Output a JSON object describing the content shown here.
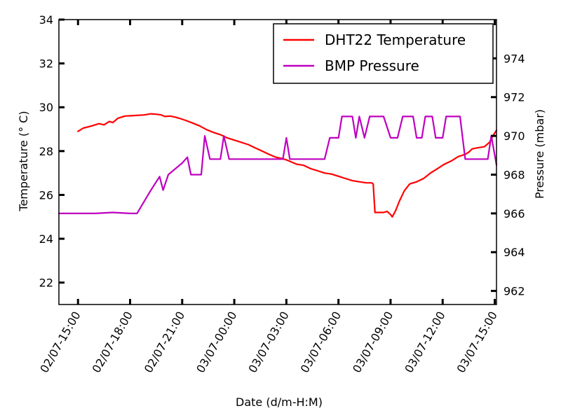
{
  "chart_data": {
    "type": "line",
    "title": "",
    "xlabel": "Date (d/m-H:M)",
    "ylabel_left": "Temperature (° C)",
    "ylabel_right": "Pressure (mbar)",
    "x_tick_labels": [
      "02/07-15:00",
      "02/07-18:00",
      "02/07-21:00",
      "03/07-00:00",
      "03/07-03:00",
      "03/07-06:00",
      "03/07-09:00",
      "03/07-12:00",
      "03/07-15:00"
    ],
    "x_ticks_hours": [
      0,
      3,
      6,
      9,
      12,
      15,
      18,
      21,
      24
    ],
    "xlim_hours": [
      -1.1,
      24.1
    ],
    "ylim_left": [
      21,
      34
    ],
    "ylim_right": [
      961.3,
      976
    ],
    "y_ticks_left": [
      22,
      24,
      26,
      28,
      30,
      32,
      34
    ],
    "y_ticks_right": [
      962,
      964,
      966,
      968,
      970,
      972,
      974
    ],
    "grid": false,
    "legend_position": "top-right",
    "series": [
      {
        "name": "DHT22 Temperature",
        "axis": "left",
        "color": "#ff0000",
        "points": [
          [
            0,
            28.9
          ],
          [
            0.3,
            29.05
          ],
          [
            0.8,
            29.15
          ],
          [
            1.2,
            29.25
          ],
          [
            1.5,
            29.2
          ],
          [
            1.8,
            29.35
          ],
          [
            2.0,
            29.3
          ],
          [
            2.3,
            29.5
          ],
          [
            2.7,
            29.6
          ],
          [
            3.2,
            29.62
          ],
          [
            3.8,
            29.65
          ],
          [
            4.2,
            29.7
          ],
          [
            4.5,
            29.68
          ],
          [
            4.8,
            29.65
          ],
          [
            5.0,
            29.58
          ],
          [
            5.3,
            29.6
          ],
          [
            5.6,
            29.55
          ],
          [
            5.9,
            29.48
          ],
          [
            6.2,
            29.4
          ],
          [
            6.6,
            29.28
          ],
          [
            7.0,
            29.15
          ],
          [
            7.4,
            28.98
          ],
          [
            7.8,
            28.85
          ],
          [
            8.2,
            28.75
          ],
          [
            8.6,
            28.6
          ],
          [
            9.0,
            28.5
          ],
          [
            9.4,
            28.4
          ],
          [
            9.8,
            28.3
          ],
          [
            10.2,
            28.15
          ],
          [
            10.6,
            28.0
          ],
          [
            11.0,
            27.85
          ],
          [
            11.4,
            27.72
          ],
          [
            11.8,
            27.65
          ],
          [
            12.0,
            27.6
          ],
          [
            12.3,
            27.5
          ],
          [
            12.6,
            27.4
          ],
          [
            13.0,
            27.35
          ],
          [
            13.4,
            27.2
          ],
          [
            13.8,
            27.1
          ],
          [
            14.2,
            27.0
          ],
          [
            14.6,
            26.95
          ],
          [
            15.0,
            26.85
          ],
          [
            15.4,
            26.75
          ],
          [
            15.8,
            26.65
          ],
          [
            16.2,
            26.6
          ],
          [
            16.6,
            26.55
          ],
          [
            16.9,
            26.55
          ],
          [
            17.0,
            26.5
          ],
          [
            17.1,
            25.2
          ],
          [
            17.6,
            25.2
          ],
          [
            17.8,
            25.25
          ],
          [
            18.0,
            25.1
          ],
          [
            18.1,
            25.0
          ],
          [
            18.3,
            25.3
          ],
          [
            18.5,
            25.7
          ],
          [
            18.8,
            26.2
          ],
          [
            19.1,
            26.5
          ],
          [
            19.5,
            26.6
          ],
          [
            19.9,
            26.75
          ],
          [
            20.3,
            27.0
          ],
          [
            20.7,
            27.2
          ],
          [
            21.1,
            27.4
          ],
          [
            21.5,
            27.55
          ],
          [
            21.9,
            27.75
          ],
          [
            22.3,
            27.85
          ],
          [
            22.5,
            27.95
          ],
          [
            22.7,
            28.1
          ],
          [
            23.0,
            28.15
          ],
          [
            23.4,
            28.2
          ],
          [
            23.7,
            28.4
          ],
          [
            23.9,
            28.7
          ],
          [
            24.1,
            28.95
          ]
        ]
      },
      {
        "name": "BMP Pressure",
        "axis": "right",
        "color": "#bf00bf",
        "points": [
          [
            -1.1,
            966.0
          ],
          [
            1.0,
            966.0
          ],
          [
            2.0,
            966.05
          ],
          [
            3.0,
            966.0
          ],
          [
            3.4,
            966.0
          ],
          [
            4.2,
            967.2
          ],
          [
            4.7,
            967.9
          ],
          [
            4.9,
            967.2
          ],
          [
            5.2,
            968.0
          ],
          [
            6.0,
            968.6
          ],
          [
            6.3,
            968.9
          ],
          [
            6.5,
            968.0
          ],
          [
            7.1,
            968.0
          ],
          [
            7.3,
            970.0
          ],
          [
            7.6,
            968.8
          ],
          [
            8.2,
            968.8
          ],
          [
            8.4,
            970.0
          ],
          [
            8.7,
            968.8
          ],
          [
            11.8,
            968.8
          ],
          [
            12.0,
            969.9
          ],
          [
            12.2,
            968.8
          ],
          [
            14.2,
            968.8
          ],
          [
            14.5,
            969.9
          ],
          [
            15.0,
            969.9
          ],
          [
            15.2,
            971.0
          ],
          [
            15.8,
            971.0
          ],
          [
            16.0,
            969.9
          ],
          [
            16.2,
            971.0
          ],
          [
            16.5,
            969.9
          ],
          [
            16.8,
            971.0
          ],
          [
            17.6,
            971.0
          ],
          [
            18.0,
            969.9
          ],
          [
            18.4,
            969.9
          ],
          [
            18.7,
            971.0
          ],
          [
            19.3,
            971.0
          ],
          [
            19.5,
            969.9
          ],
          [
            19.8,
            969.9
          ],
          [
            20.0,
            971.0
          ],
          [
            20.4,
            971.0
          ],
          [
            20.6,
            969.9
          ],
          [
            21.0,
            969.9
          ],
          [
            21.2,
            971.0
          ],
          [
            22.0,
            971.0
          ],
          [
            22.3,
            968.8
          ],
          [
            23.6,
            968.8
          ],
          [
            23.8,
            970.0
          ],
          [
            24.1,
            968.5
          ]
        ]
      }
    ]
  }
}
